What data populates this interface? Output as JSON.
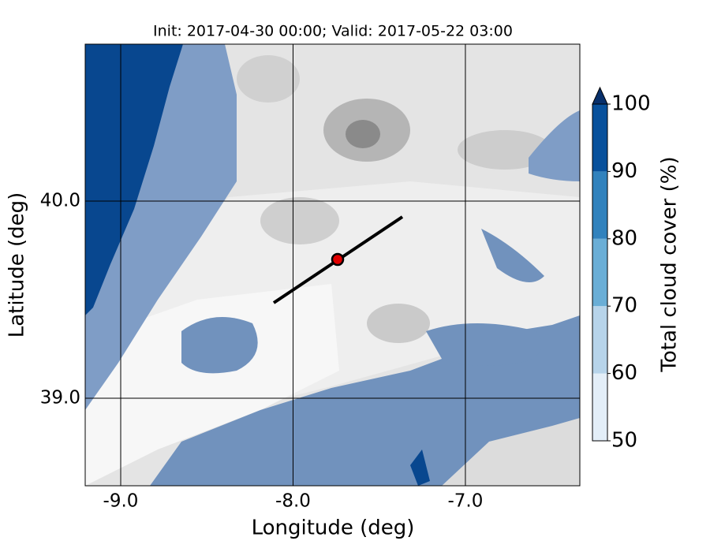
{
  "chart_data": {
    "type": "map",
    "title": "Init: 2017-04-30 00:00; Valid: 2017-05-22 03:00",
    "x_label": "Longitude (deg)",
    "y_label": "Latitude (deg)",
    "xlim": [
      -9.206,
      -6.336
    ],
    "ylim": [
      38.556,
      40.796
    ],
    "xticks": [
      {
        "value": -9,
        "label": "-9.0"
      },
      {
        "value": -8,
        "label": "-8.0"
      },
      {
        "value": -7,
        "label": "-7.0"
      }
    ],
    "yticks": [
      {
        "value": 39,
        "label": "39.0"
      },
      {
        "value": 40,
        "label": "40.0"
      }
    ],
    "grid": true,
    "colorbar": {
      "label": "Total cloud cover (%)",
      "ticks": [
        50,
        60,
        70,
        80,
        90,
        100
      ],
      "colors": [
        "#e3eef8",
        "#b7d4ea",
        "#6aaed6",
        "#3182bd",
        "#08519c"
      ],
      "extend_color": "#08306b"
    }
  }
}
